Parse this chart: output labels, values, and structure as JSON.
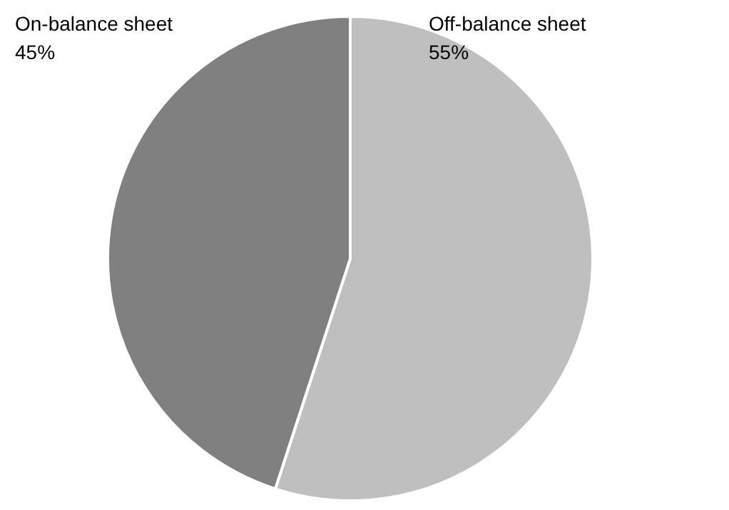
{
  "chart_data": {
    "type": "pie",
    "categories": [
      "Off-balance sheet",
      "On-balance sheet"
    ],
    "values": [
      55,
      45
    ],
    "colors": [
      "#bfbfbf",
      "#808080"
    ],
    "value_labels": [
      "55%",
      "45%"
    ]
  }
}
